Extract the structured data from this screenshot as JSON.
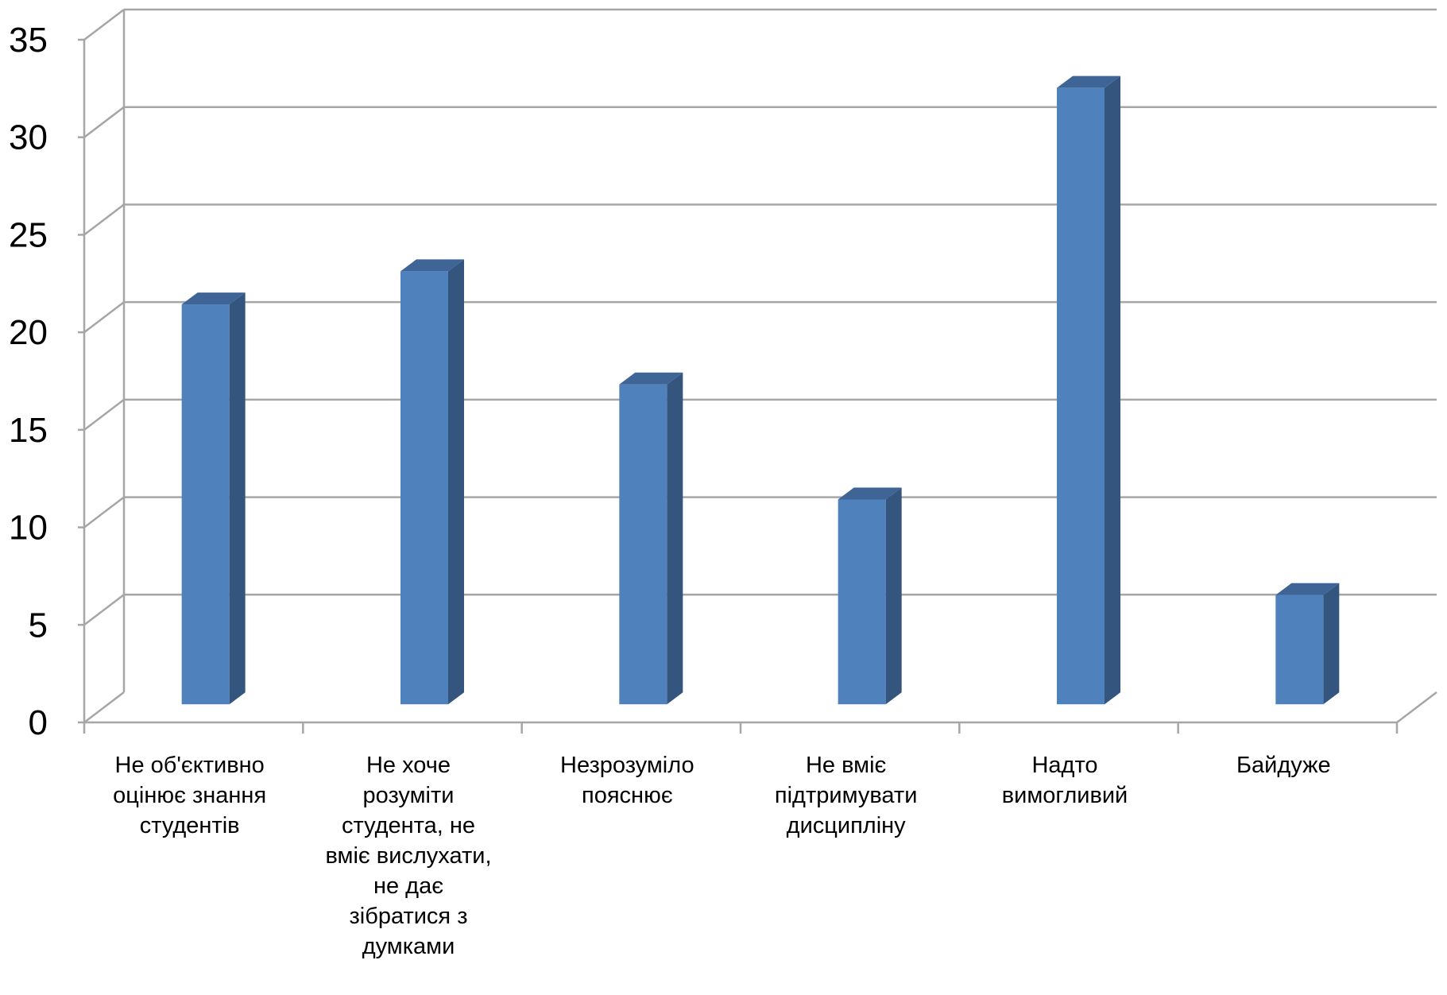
{
  "chart_data": {
    "type": "bar",
    "style": "3d-column",
    "categories": [
      [
        "Не об'єктивно",
        "оцінює знання",
        "студентів"
      ],
      [
        "Не хоче",
        "розуміти",
        "студента, не",
        "вміє вислухати,",
        "не дає",
        "зібратися з",
        "думками"
      ],
      [
        "Незрозуміло",
        "пояснює"
      ],
      [
        "Не вміє",
        "підтримувати",
        "дисципліну"
      ],
      [
        "Надто",
        "вимогливий"
      ],
      [
        "Байдуже"
      ]
    ],
    "values": [
      20.5,
      22.2,
      16.4,
      10.5,
      31.6,
      5.6
    ],
    "ylim": [
      0,
      35
    ],
    "yticks": [
      "0",
      "5",
      "10",
      "15",
      "20",
      "25",
      "30",
      "35"
    ],
    "grid": true,
    "legend": "none",
    "colors": {
      "bar_front": "#4F81BD",
      "bar_side": "#34557E",
      "bar_top": "#3E6596",
      "grid": "#A6A6A6"
    }
  }
}
